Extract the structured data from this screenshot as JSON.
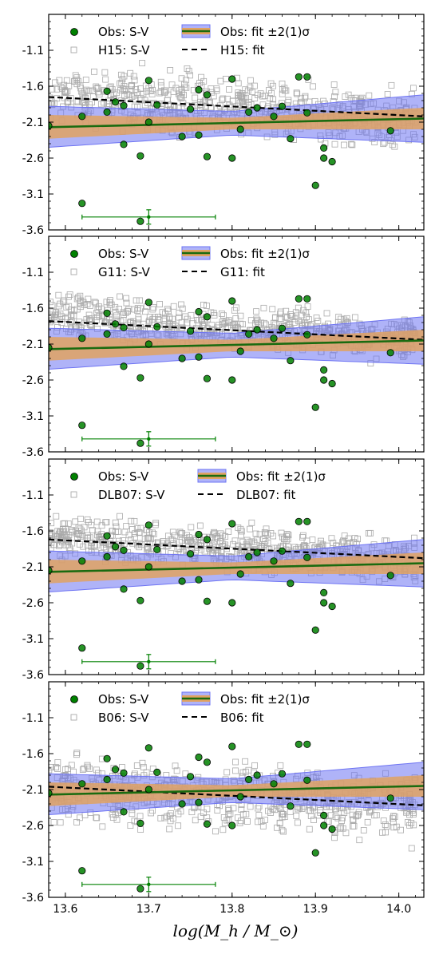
{
  "figure": {
    "xlabel": "log(M_h / M_⊙)"
  },
  "chart_data": [
    {
      "type": "scatter",
      "model_key": "H15",
      "obs_label": "Obs: S-V",
      "model_label": "H15: S-V",
      "band_label": "Obs: fit ±2(1)σ",
      "model_fit_label": "H15: fit",
      "xlim": [
        13.58,
        14.03
      ],
      "ylim": [
        -3.6,
        -0.6
      ],
      "xticks": [
        "13.6",
        "13.7",
        "13.8",
        "13.9",
        "14.0"
      ],
      "yticks": [
        "-1.1",
        "-1.6",
        "-2.1",
        "-2.6",
        "-3.1",
        "-3.6"
      ],
      "model_fit": [
        [
          13.58,
          -1.75
        ],
        [
          14.03,
          -2.02
        ]
      ],
      "model_trend": {
        "start": -1.72,
        "end": -2.08,
        "scatter": 0.28
      }
    },
    {
      "type": "scatter",
      "model_key": "G11",
      "obs_label": "Obs: S-V",
      "model_label": "G11: S-V",
      "band_label": "Obs: fit ±2(1)σ",
      "model_fit_label": "G11: fit",
      "xlim": [
        13.58,
        14.03
      ],
      "ylim": [
        -3.6,
        -0.6
      ],
      "xticks": [
        "13.6",
        "13.7",
        "13.8",
        "13.9",
        "14.0"
      ],
      "yticks": [
        "-1.1",
        "-1.6",
        "-2.1",
        "-2.6",
        "-3.1",
        "-3.6"
      ],
      "model_fit": [
        [
          13.58,
          -1.78
        ],
        [
          14.03,
          -2.04
        ]
      ],
      "model_trend": {
        "start": -1.7,
        "end": -2.05,
        "scatter": 0.2
      }
    },
    {
      "type": "scatter",
      "model_key": "DLB07",
      "obs_label": "Obs: S-V",
      "model_label": "DLB07: S-V",
      "band_label": "Obs: fit ±2(1)σ",
      "model_fit_label": "DLB07: fit",
      "xlim": [
        13.58,
        14.03
      ],
      "ylim": [
        -3.6,
        -0.6
      ],
      "xticks": [
        "13.6",
        "13.7",
        "13.8",
        "13.9",
        "14.0"
      ],
      "yticks": [
        "-1.1",
        "-1.6",
        "-2.1",
        "-2.6",
        "-3.1",
        "-3.6"
      ],
      "model_fit": [
        [
          13.58,
          -1.72
        ],
        [
          14.03,
          -1.98
        ]
      ],
      "model_trend": {
        "start": -1.68,
        "end": -2.02,
        "scatter": 0.2
      }
    },
    {
      "type": "scatter",
      "model_key": "B06",
      "obs_label": "Obs: S-V",
      "model_label": "B06: S-V",
      "band_label": "Obs: fit ±2(1)σ",
      "model_fit_label": "B06: fit",
      "xlim": [
        13.58,
        14.03
      ],
      "ylim": [
        -3.6,
        -0.6
      ],
      "xticks": [
        "13.6",
        "13.7",
        "13.8",
        "13.9",
        "14.0"
      ],
      "yticks": [
        "-1.1",
        "-1.6",
        "-2.1",
        "-2.6",
        "-3.1",
        "-3.6"
      ],
      "model_fit": [
        [
          13.58,
          -2.06
        ],
        [
          14.03,
          -2.32
        ]
      ],
      "model_trend": {
        "start": -2.1,
        "end": -2.35,
        "scatter": 0.3
      }
    }
  ],
  "observations": {
    "points": [
      [
        13.58,
        -2.15
      ],
      [
        13.62,
        -3.23
      ],
      [
        13.62,
        -2.02
      ],
      [
        13.65,
        -1.67
      ],
      [
        13.65,
        -1.96
      ],
      [
        13.66,
        -1.82
      ],
      [
        13.67,
        -1.87
      ],
      [
        13.67,
        -2.41
      ],
      [
        13.69,
        -2.57
      ],
      [
        13.69,
        -3.48
      ],
      [
        13.7,
        -1.52
      ],
      [
        13.7,
        -2.1
      ],
      [
        13.71,
        -1.86
      ],
      [
        13.74,
        -2.3
      ],
      [
        13.75,
        -1.92
      ],
      [
        13.76,
        -1.65
      ],
      [
        13.76,
        -2.28
      ],
      [
        13.77,
        -1.72
      ],
      [
        13.77,
        -2.58
      ],
      [
        13.8,
        -2.6
      ],
      [
        13.8,
        -1.5
      ],
      [
        13.81,
        -2.2
      ],
      [
        13.82,
        -1.96
      ],
      [
        13.83,
        -1.9
      ],
      [
        13.85,
        -2.02
      ],
      [
        13.86,
        -1.88
      ],
      [
        13.87,
        -2.33
      ],
      [
        13.88,
        -1.47
      ],
      [
        13.89,
        -1.47
      ],
      [
        13.89,
        -1.97
      ],
      [
        13.9,
        -2.98
      ],
      [
        13.91,
        -2.46
      ],
      [
        13.91,
        -2.6
      ],
      [
        13.92,
        -2.65
      ],
      [
        13.99,
        -2.22
      ]
    ],
    "fit": [
      [
        13.58,
        -2.17
      ],
      [
        14.03,
        -2.05
      ]
    ],
    "band_1sigma": [
      [
        13.58,
        -2.33,
        -2.0
      ],
      [
        13.8,
        -2.2,
        -2.04
      ],
      [
        14.03,
        -2.2,
        -1.9
      ]
    ],
    "band_2sigma": [
      [
        13.58,
        -2.45,
        -1.88
      ],
      [
        13.8,
        -2.28,
        -1.95
      ],
      [
        14.03,
        -2.38,
        -1.72
      ]
    ],
    "errorbar": {
      "x": 13.7,
      "y": -3.42,
      "xerr": 0.08,
      "yerr": 0.1
    }
  },
  "colors": {
    "obs_marker": "#008000",
    "obs_fit": "#1a6b10",
    "band_1sigma": "#e0a262",
    "band_2sigma": "#6e74f3",
    "model_marker": "#aaaaaa",
    "model_fit": "#000000"
  }
}
